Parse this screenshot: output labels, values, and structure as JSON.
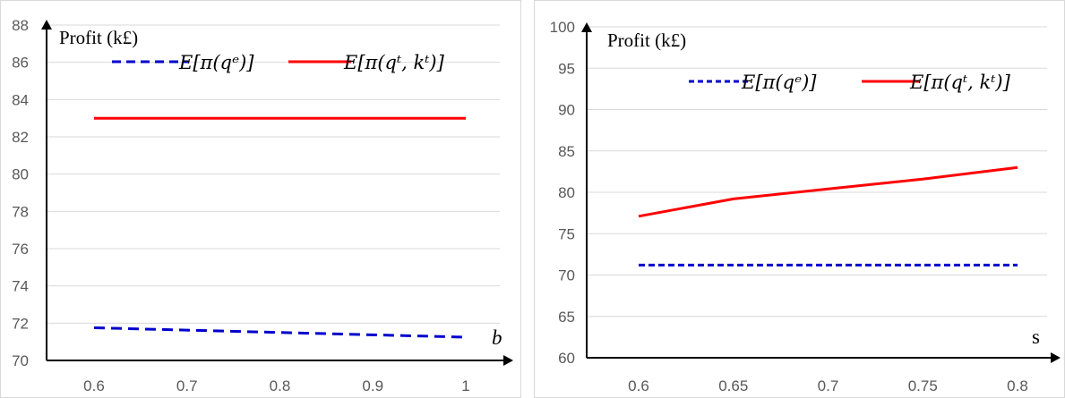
{
  "chart_data": [
    {
      "type": "line",
      "ylabel": "Profit (k£)",
      "xlabel": "b",
      "x": [
        0.6,
        0.7,
        0.8,
        0.9,
        1
      ],
      "x_tick_labels": [
        "0.6",
        "0.7",
        "0.8",
        "0.9",
        "1"
      ],
      "ylim": [
        70,
        88
      ],
      "y_tick_labels": [
        "70",
        "72",
        "74",
        "76",
        "78",
        "80",
        "82",
        "84",
        "86",
        "88"
      ],
      "grid": true,
      "series": [
        {
          "name": "E[π(q^e)]",
          "legend_text": "E[π(qᵉ)]",
          "color": "#0000cc",
          "dash": true,
          "x": [
            0.6,
            1
          ],
          "values": [
            71.75,
            71.25
          ]
        },
        {
          "name": "E[π(q^t, k^t)]",
          "legend_text": "E[π(qᵗ, kᵗ)]",
          "color": "#ff0000",
          "dash": false,
          "x": [
            0.6,
            1
          ],
          "values": [
            83.0,
            83.0
          ]
        }
      ]
    },
    {
      "type": "line",
      "ylabel": "Profit (k£)",
      "xlabel": "s",
      "x": [
        0.6,
        0.65,
        0.7,
        0.75,
        0.8
      ],
      "x_tick_labels": [
        "0.6",
        "0.65",
        "0.7",
        "0.75",
        "0.8"
      ],
      "ylim": [
        60,
        100
      ],
      "y_tick_labels": [
        "60",
        "65",
        "70",
        "75",
        "80",
        "85",
        "90",
        "95",
        "100"
      ],
      "grid": true,
      "series": [
        {
          "name": "E[π(q^e)]",
          "legend_text": "E[π(qᵉ)]",
          "color": "#0000cc",
          "dash": true,
          "x": [
            0.6,
            0.65,
            0.7,
            0.75,
            0.8
          ],
          "values": [
            71.2,
            71.2,
            71.2,
            71.2,
            71.2
          ]
        },
        {
          "name": "E[π(q^t, k^t)]",
          "legend_text": "E[π(qᵗ, kᵗ)]",
          "color": "#ff0000",
          "dash": false,
          "x": [
            0.6,
            0.65,
            0.7,
            0.75,
            0.8
          ],
          "values": [
            77.1,
            79.2,
            80.4,
            81.6,
            83.0
          ]
        }
      ]
    }
  ]
}
